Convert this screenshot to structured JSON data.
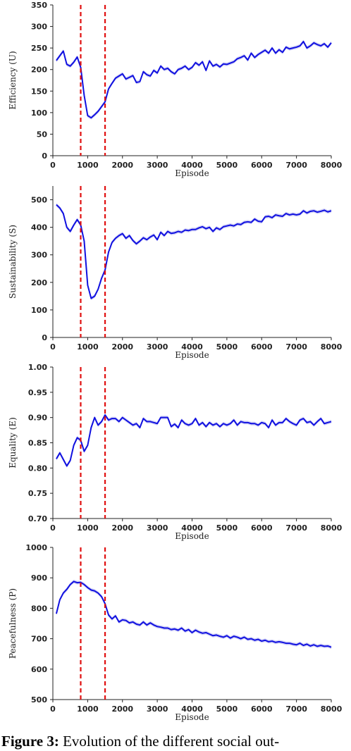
{
  "chart_data": [
    {
      "type": "line",
      "ylabel": "Efficiency (U)",
      "xlabel": "Episode",
      "xlim": [
        0,
        8000
      ],
      "ylim": [
        0,
        350
      ],
      "xticks": [
        0,
        1000,
        2000,
        3000,
        4000,
        5000,
        6000,
        7000,
        8000
      ],
      "yticks": [
        0,
        50,
        100,
        150,
        200,
        250,
        300,
        350
      ],
      "vlines": [
        800,
        1500
      ],
      "line_color": "#1010e0",
      "vline_color": "#e01010",
      "x": [
        100,
        200,
        300,
        400,
        500,
        600,
        700,
        800,
        900,
        1000,
        1100,
        1200,
        1300,
        1400,
        1500,
        1600,
        1700,
        1800,
        1900,
        2000,
        2100,
        2200,
        2300,
        2400,
        2500,
        2600,
        2700,
        2800,
        2900,
        3000,
        3100,
        3200,
        3300,
        3400,
        3500,
        3600,
        3700,
        3800,
        3900,
        4000,
        4100,
        4200,
        4300,
        4400,
        4500,
        4600,
        4700,
        4800,
        4900,
        5000,
        5100,
        5200,
        5300,
        5400,
        5500,
        5600,
        5700,
        5800,
        5900,
        6000,
        6100,
        6200,
        6300,
        6400,
        6500,
        6600,
        6700,
        6800,
        6900,
        7000,
        7100,
        7200,
        7300,
        7400,
        7500,
        7600,
        7700,
        7800,
        7900,
        8000
      ],
      "series": [
        {
          "values": [
            221,
            232,
            243,
            212,
            208,
            217,
            229,
            205,
            140,
            93,
            88,
            95,
            103,
            114,
            125,
            155,
            168,
            180,
            185,
            190,
            178,
            182,
            186,
            170,
            172,
            195,
            188,
            185,
            198,
            192,
            208,
            200,
            203,
            195,
            190,
            200,
            203,
            208,
            200,
            205,
            216,
            210,
            218,
            198,
            220,
            208,
            212,
            206,
            213,
            212,
            215,
            218,
            225,
            228,
            232,
            222,
            238,
            228,
            235,
            240,
            245,
            238,
            250,
            238,
            246,
            240,
            252,
            248,
            250,
            252,
            255,
            265,
            250,
            255,
            262,
            258,
            255,
            260,
            252,
            262
          ]
        }
      ]
    },
    {
      "type": "line",
      "ylabel": "Sustainability (S)",
      "xlabel": "Episode",
      "xlim": [
        0,
        8000
      ],
      "ylim": [
        0,
        550
      ],
      "xticks": [
        0,
        1000,
        2000,
        3000,
        4000,
        5000,
        6000,
        7000,
        8000
      ],
      "yticks": [
        0,
        100,
        200,
        300,
        400,
        500
      ],
      "vlines": [
        800,
        1500
      ],
      "line_color": "#1010e0",
      "vline_color": "#e01010",
      "x": [
        100,
        200,
        300,
        400,
        500,
        600,
        700,
        800,
        900,
        1000,
        1100,
        1200,
        1300,
        1400,
        1500,
        1600,
        1700,
        1800,
        1900,
        2000,
        2100,
        2200,
        2300,
        2400,
        2500,
        2600,
        2700,
        2800,
        2900,
        3000,
        3100,
        3200,
        3300,
        3400,
        3500,
        3600,
        3700,
        3800,
        3900,
        4000,
        4100,
        4200,
        4300,
        4400,
        4500,
        4600,
        4700,
        4800,
        4900,
        5000,
        5100,
        5200,
        5300,
        5400,
        5500,
        5600,
        5700,
        5800,
        5900,
        6000,
        6100,
        6200,
        6300,
        6400,
        6500,
        6600,
        6700,
        6800,
        6900,
        7000,
        7100,
        7200,
        7300,
        7400,
        7500,
        7600,
        7700,
        7800,
        7900,
        8000
      ],
      "series": [
        {
          "values": [
            482,
            470,
            450,
            400,
            385,
            408,
            428,
            408,
            350,
            190,
            142,
            150,
            175,
            215,
            245,
            310,
            345,
            360,
            370,
            377,
            360,
            370,
            352,
            340,
            350,
            362,
            355,
            365,
            372,
            355,
            382,
            370,
            385,
            378,
            380,
            385,
            382,
            390,
            388,
            392,
            392,
            398,
            402,
            395,
            400,
            385,
            398,
            392,
            402,
            405,
            408,
            405,
            412,
            410,
            418,
            420,
            418,
            430,
            422,
            420,
            438,
            440,
            435,
            445,
            442,
            440,
            450,
            445,
            448,
            445,
            448,
            460,
            452,
            458,
            460,
            455,
            458,
            462,
            456,
            460
          ]
        }
      ]
    },
    {
      "type": "line",
      "ylabel": "Equality (E)",
      "xlabel": "Episode",
      "xlim": [
        0,
        8000
      ],
      "ylim": [
        0.7,
        1.0
      ],
      "xticks": [
        0,
        1000,
        2000,
        3000,
        4000,
        5000,
        6000,
        7000,
        8000
      ],
      "yticks": [
        0.7,
        0.75,
        0.8,
        0.85,
        0.9,
        0.95,
        1.0
      ],
      "ytick_labels": [
        "0.70",
        "0.75",
        "0.80",
        "0.85",
        "0.90",
        "0.95",
        "1.00"
      ],
      "vlines": [
        800,
        1500
      ],
      "line_color": "#1010e0",
      "vline_color": "#e01010",
      "x": [
        100,
        200,
        300,
        400,
        500,
        600,
        700,
        800,
        900,
        1000,
        1100,
        1200,
        1300,
        1400,
        1500,
        1600,
        1700,
        1800,
        1900,
        2000,
        2100,
        2200,
        2300,
        2400,
        2500,
        2600,
        2700,
        2800,
        2900,
        3000,
        3100,
        3200,
        3300,
        3400,
        3500,
        3600,
        3700,
        3800,
        3900,
        4000,
        4100,
        4200,
        4300,
        4400,
        4500,
        4600,
        4700,
        4800,
        4900,
        5000,
        5100,
        5200,
        5300,
        5400,
        5500,
        5600,
        5700,
        5800,
        5900,
        6000,
        6100,
        6200,
        6300,
        6400,
        6500,
        6600,
        6700,
        6800,
        6900,
        7000,
        7100,
        7200,
        7300,
        7400,
        7500,
        7600,
        7700,
        7800,
        7900,
        8000
      ],
      "series": [
        {
          "values": [
            0.818,
            0.83,
            0.817,
            0.804,
            0.815,
            0.845,
            0.86,
            0.855,
            0.833,
            0.845,
            0.88,
            0.9,
            0.885,
            0.892,
            0.905,
            0.895,
            0.898,
            0.898,
            0.892,
            0.9,
            0.895,
            0.89,
            0.885,
            0.888,
            0.88,
            0.898,
            0.892,
            0.892,
            0.89,
            0.888,
            0.9,
            0.9,
            0.9,
            0.882,
            0.887,
            0.88,
            0.895,
            0.888,
            0.885,
            0.888,
            0.898,
            0.885,
            0.89,
            0.882,
            0.89,
            0.885,
            0.888,
            0.882,
            0.888,
            0.885,
            0.888,
            0.895,
            0.885,
            0.892,
            0.89,
            0.89,
            0.888,
            0.888,
            0.885,
            0.89,
            0.888,
            0.88,
            0.895,
            0.885,
            0.89,
            0.89,
            0.898,
            0.892,
            0.888,
            0.885,
            0.895,
            0.898,
            0.89,
            0.892,
            0.885,
            0.892,
            0.898,
            0.888,
            0.89,
            0.892
          ]
        }
      ]
    },
    {
      "type": "line",
      "ylabel": "Peacefulness (P)",
      "xlabel": "Episode",
      "xlim": [
        0,
        8000
      ],
      "ylim": [
        500,
        1000
      ],
      "xticks": [
        0,
        1000,
        2000,
        3000,
        4000,
        5000,
        6000,
        7000,
        8000
      ],
      "yticks": [
        500,
        600,
        700,
        800,
        900,
        1000
      ],
      "vlines": [
        800,
        1500
      ],
      "line_color": "#1010e0",
      "vline_color": "#e01010",
      "x": [
        100,
        200,
        300,
        400,
        500,
        600,
        700,
        800,
        900,
        1000,
        1100,
        1200,
        1300,
        1400,
        1500,
        1600,
        1700,
        1800,
        1900,
        2000,
        2100,
        2200,
        2300,
        2400,
        2500,
        2600,
        2700,
        2800,
        2900,
        3000,
        3100,
        3200,
        3300,
        3400,
        3500,
        3600,
        3700,
        3800,
        3900,
        4000,
        4100,
        4200,
        4300,
        4400,
        4500,
        4600,
        4700,
        4800,
        4900,
        5000,
        5100,
        5200,
        5300,
        5400,
        5500,
        5600,
        5700,
        5800,
        5900,
        6000,
        6100,
        6200,
        6300,
        6400,
        6500,
        6600,
        6700,
        6800,
        6900,
        7000,
        7100,
        7200,
        7300,
        7400,
        7500,
        7600,
        7700,
        7800,
        7900,
        8000
      ],
      "series": [
        {
          "values": [
            782,
            828,
            850,
            862,
            878,
            888,
            884,
            885,
            878,
            868,
            860,
            857,
            850,
            838,
            815,
            778,
            765,
            775,
            755,
            762,
            760,
            752,
            755,
            748,
            745,
            755,
            745,
            752,
            745,
            740,
            738,
            735,
            735,
            730,
            732,
            728,
            735,
            725,
            730,
            720,
            728,
            722,
            718,
            720,
            715,
            710,
            712,
            708,
            705,
            710,
            702,
            708,
            705,
            700,
            705,
            698,
            700,
            695,
            698,
            692,
            695,
            690,
            692,
            688,
            690,
            688,
            685,
            685,
            682,
            680,
            685,
            678,
            682,
            676,
            680,
            675,
            678,
            675,
            676,
            672
          ]
        }
      ]
    }
  ],
  "caption": {
    "label": "Figure 3:",
    "text": "Evolution of the different social out-"
  }
}
